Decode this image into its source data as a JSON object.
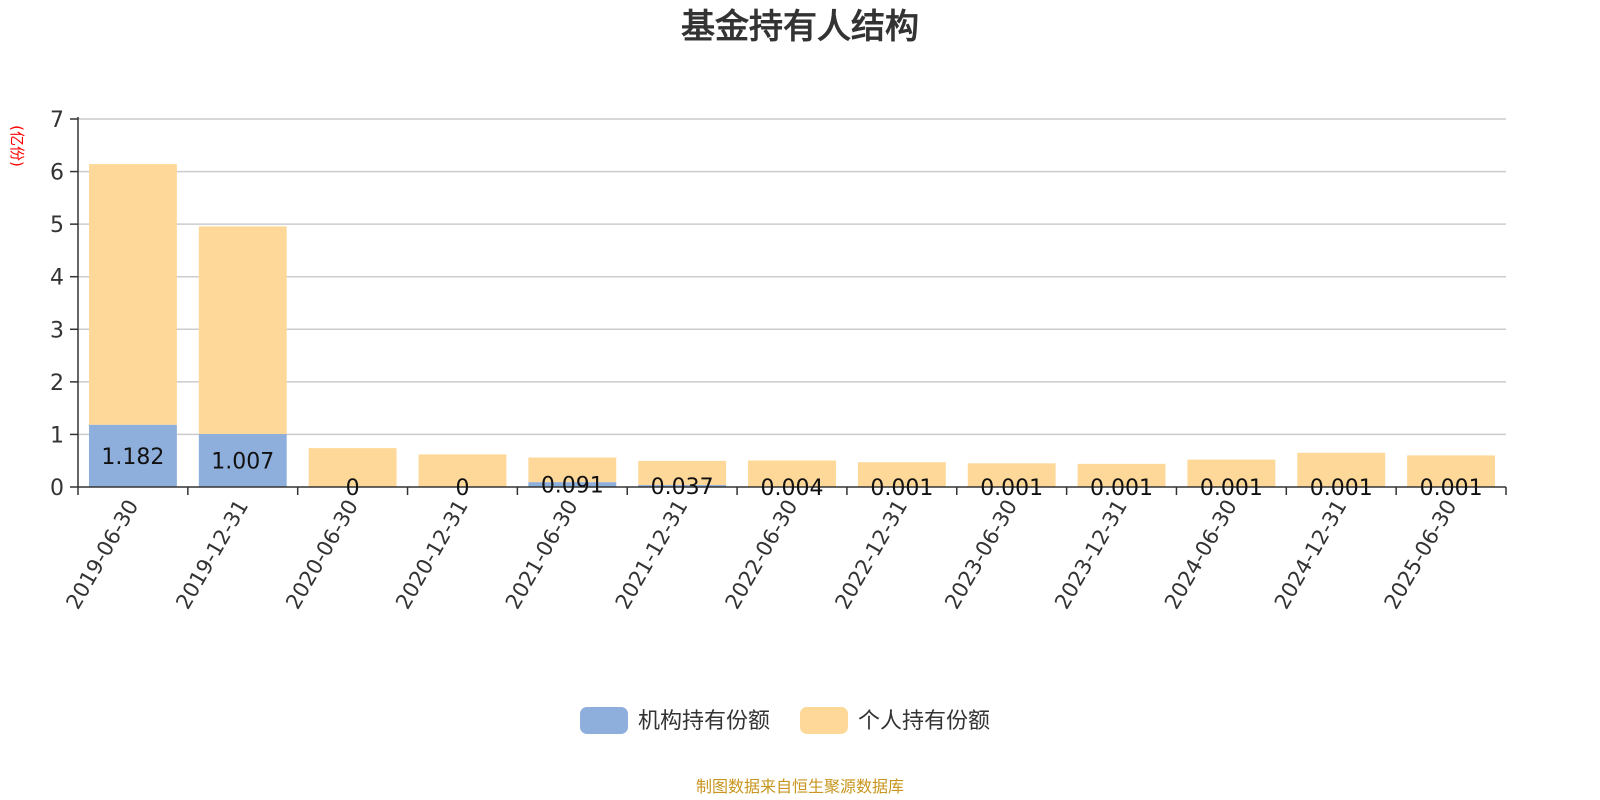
{
  "chart_data": {
    "type": "bar",
    "stacked": true,
    "title": "基金持有人结构",
    "unit_label": "(亿份)",
    "categories": [
      "2019-06-30",
      "2019-12-31",
      "2020-06-30",
      "2020-12-31",
      "2021-06-30",
      "2021-12-31",
      "2022-06-30",
      "2022-12-31",
      "2023-06-30",
      "2023-12-31",
      "2024-06-30",
      "2024-12-31",
      "2025-06-30"
    ],
    "yticks": [
      "0",
      "1",
      "2",
      "3",
      "4",
      "5",
      "6",
      "7"
    ],
    "ylim": [
      0,
      7
    ],
    "grid": true,
    "legend_position": "bottom",
    "series": [
      {
        "name": "机构持有份额",
        "color": "#8eaedb",
        "values": [
          1.182,
          1.007,
          0,
          0,
          0.091,
          0.037,
          0.004,
          0.001,
          0.001,
          0.001,
          0.001,
          0.001,
          0.001
        ],
        "labels": [
          "1.182",
          "1.007",
          "0",
          "0",
          "0.091",
          "0.037",
          "0.004",
          "0.001",
          "0.001",
          "0.001",
          "0.001",
          "0.001",
          "0.001"
        ]
      },
      {
        "name": "个人持有份额",
        "color": "#fed898",
        "values": [
          4.96,
          3.95,
          0.74,
          0.62,
          0.47,
          0.46,
          0.5,
          0.47,
          0.45,
          0.44,
          0.52,
          0.65,
          0.6
        ]
      }
    ],
    "source": "制图数据来自恒生聚源数据库"
  }
}
